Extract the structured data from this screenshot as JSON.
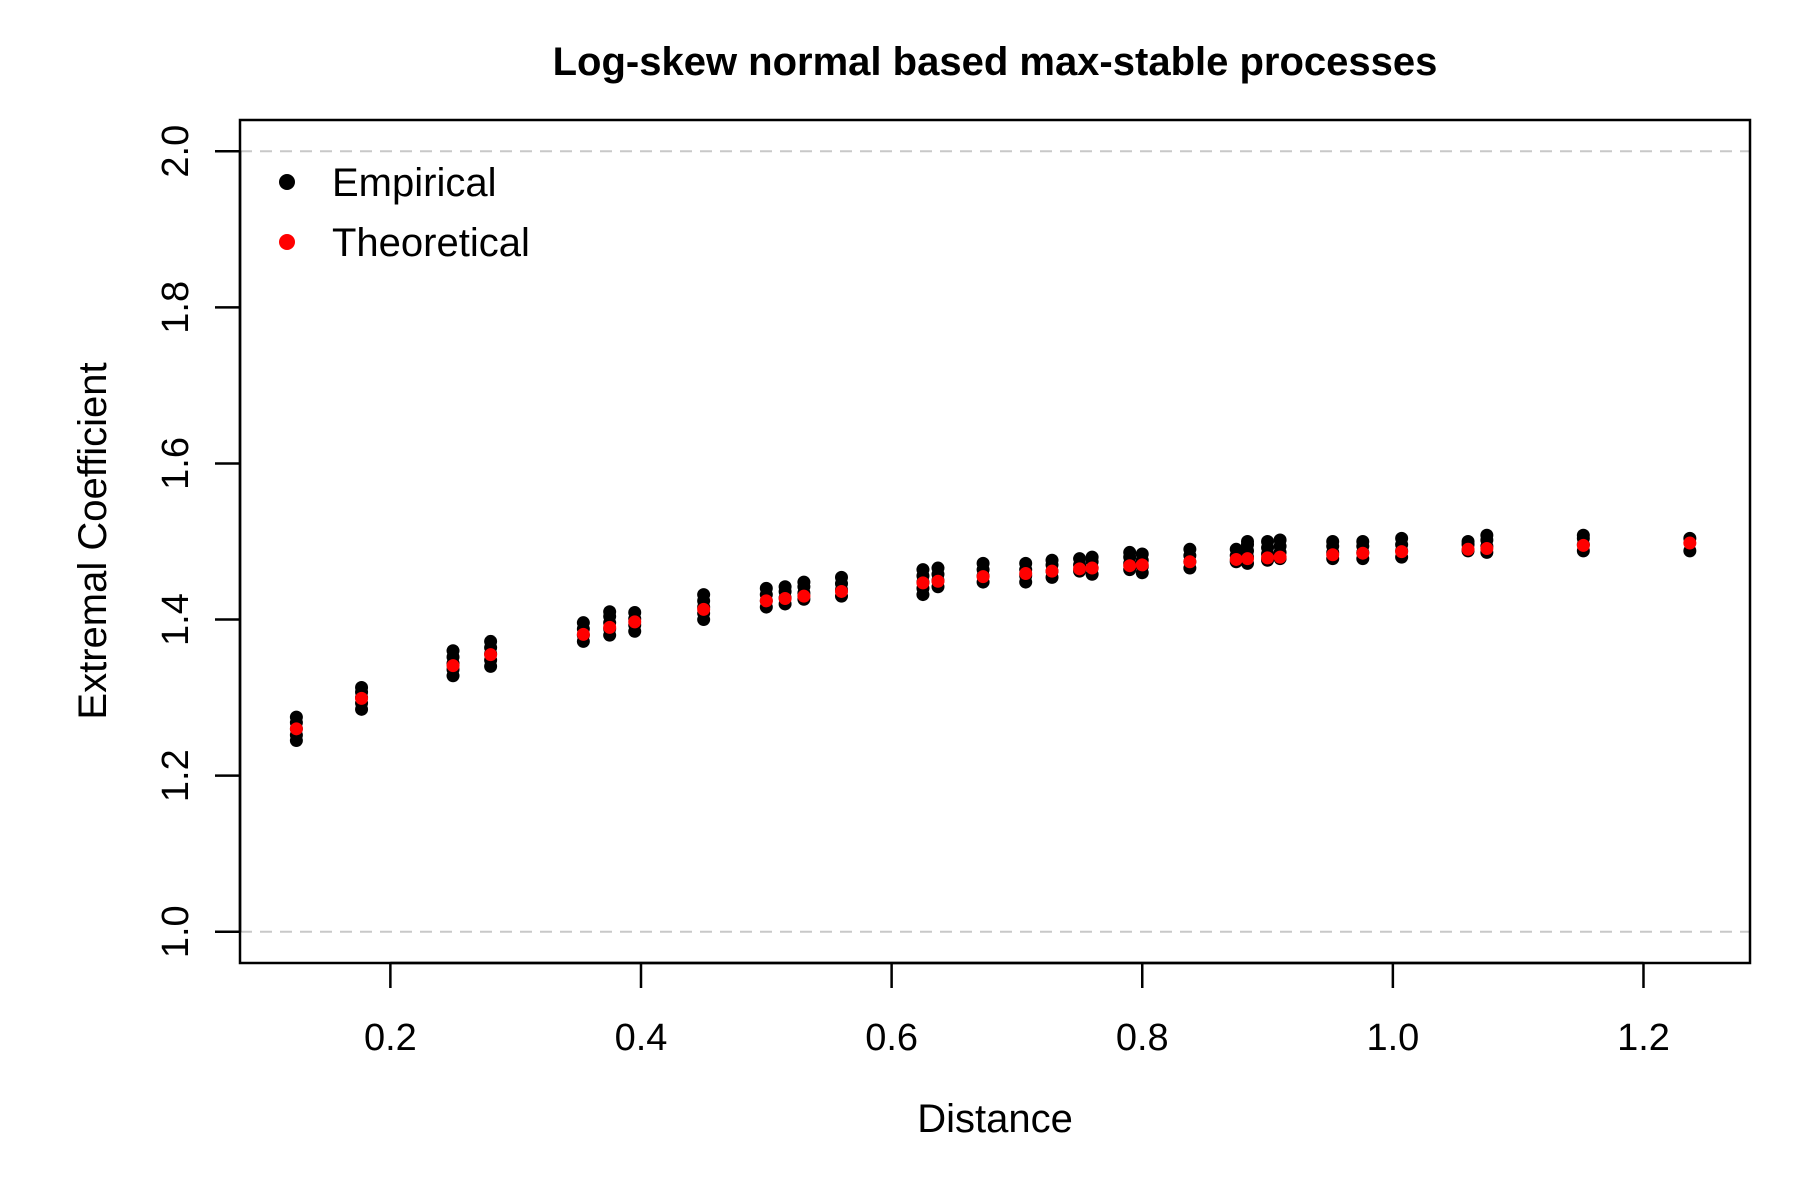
{
  "chart_data": {
    "type": "scatter",
    "title": "Log-skew normal based max-stable processes",
    "xlabel": "Distance",
    "ylabel": "Extremal Coefficient",
    "xlim": [
      0.08,
      1.285
    ],
    "ylim": [
      0.96,
      2.04
    ],
    "xticks": [
      {
        "value": 0.2,
        "label": "0.2"
      },
      {
        "value": 0.4,
        "label": "0.4"
      },
      {
        "value": 0.6,
        "label": "0.6"
      },
      {
        "value": 0.8,
        "label": "0.8"
      },
      {
        "value": 1.0,
        "label": "1.0"
      },
      {
        "value": 1.2,
        "label": "1.2"
      }
    ],
    "yticks": [
      {
        "value": 1.0,
        "label": "1.0"
      },
      {
        "value": 1.2,
        "label": "1.2"
      },
      {
        "value": 1.4,
        "label": "1.4"
      },
      {
        "value": 1.6,
        "label": "1.6"
      },
      {
        "value": 1.8,
        "label": "1.8"
      },
      {
        "value": 2.0,
        "label": "2.0"
      }
    ],
    "reference_lines": [
      1.0,
      2.0
    ],
    "reference_line_color": "#c8c8c8",
    "legend_position": "top-left",
    "series": [
      {
        "name": "Empirical",
        "color": "#000000",
        "points": [
          [
            0.125,
            1.245
          ],
          [
            0.125,
            1.252
          ],
          [
            0.125,
            1.26
          ],
          [
            0.125,
            1.268
          ],
          [
            0.125,
            1.275
          ],
          [
            0.177,
            1.285
          ],
          [
            0.177,
            1.293
          ],
          [
            0.177,
            1.3
          ],
          [
            0.177,
            1.307
          ],
          [
            0.177,
            1.313
          ],
          [
            0.25,
            1.328
          ],
          [
            0.25,
            1.336
          ],
          [
            0.25,
            1.344
          ],
          [
            0.25,
            1.352
          ],
          [
            0.25,
            1.36
          ],
          [
            0.28,
            1.34
          ],
          [
            0.28,
            1.348
          ],
          [
            0.28,
            1.356
          ],
          [
            0.28,
            1.364
          ],
          [
            0.28,
            1.372
          ],
          [
            0.354,
            1.372
          ],
          [
            0.354,
            1.38
          ],
          [
            0.354,
            1.388
          ],
          [
            0.354,
            1.396
          ],
          [
            0.375,
            1.38
          ],
          [
            0.375,
            1.388
          ],
          [
            0.375,
            1.396
          ],
          [
            0.375,
            1.404
          ],
          [
            0.375,
            1.41
          ],
          [
            0.395,
            1.385
          ],
          [
            0.395,
            1.393
          ],
          [
            0.395,
            1.401
          ],
          [
            0.395,
            1.409
          ],
          [
            0.45,
            1.4
          ],
          [
            0.45,
            1.408
          ],
          [
            0.45,
            1.416
          ],
          [
            0.45,
            1.424
          ],
          [
            0.45,
            1.432
          ],
          [
            0.5,
            1.416
          ],
          [
            0.5,
            1.424
          ],
          [
            0.5,
            1.432
          ],
          [
            0.5,
            1.44
          ],
          [
            0.515,
            1.42
          ],
          [
            0.515,
            1.428
          ],
          [
            0.515,
            1.436
          ],
          [
            0.515,
            1.442
          ],
          [
            0.53,
            1.426
          ],
          [
            0.53,
            1.434
          ],
          [
            0.53,
            1.442
          ],
          [
            0.53,
            1.448
          ],
          [
            0.56,
            1.43
          ],
          [
            0.56,
            1.438
          ],
          [
            0.56,
            1.446
          ],
          [
            0.56,
            1.454
          ],
          [
            0.625,
            1.432
          ],
          [
            0.625,
            1.44
          ],
          [
            0.625,
            1.448
          ],
          [
            0.625,
            1.456
          ],
          [
            0.625,
            1.464
          ],
          [
            0.637,
            1.442
          ],
          [
            0.637,
            1.45
          ],
          [
            0.637,
            1.458
          ],
          [
            0.637,
            1.466
          ],
          [
            0.673,
            1.448
          ],
          [
            0.673,
            1.456
          ],
          [
            0.673,
            1.464
          ],
          [
            0.673,
            1.472
          ],
          [
            0.707,
            1.448
          ],
          [
            0.707,
            1.456
          ],
          [
            0.707,
            1.464
          ],
          [
            0.707,
            1.472
          ],
          [
            0.728,
            1.454
          ],
          [
            0.728,
            1.462
          ],
          [
            0.728,
            1.47
          ],
          [
            0.728,
            1.476
          ],
          [
            0.75,
            1.462
          ],
          [
            0.75,
            1.47
          ],
          [
            0.75,
            1.478
          ],
          [
            0.76,
            1.458
          ],
          [
            0.76,
            1.466
          ],
          [
            0.76,
            1.474
          ],
          [
            0.76,
            1.48
          ],
          [
            0.79,
            1.464
          ],
          [
            0.79,
            1.472
          ],
          [
            0.79,
            1.48
          ],
          [
            0.79,
            1.486
          ],
          [
            0.8,
            1.46
          ],
          [
            0.8,
            1.468
          ],
          [
            0.8,
            1.476
          ],
          [
            0.8,
            1.484
          ],
          [
            0.838,
            1.466
          ],
          [
            0.838,
            1.474
          ],
          [
            0.838,
            1.482
          ],
          [
            0.838,
            1.49
          ],
          [
            0.875,
            1.474
          ],
          [
            0.875,
            1.482
          ],
          [
            0.875,
            1.49
          ],
          [
            0.884,
            1.472
          ],
          [
            0.884,
            1.48
          ],
          [
            0.884,
            1.488
          ],
          [
            0.884,
            1.496
          ],
          [
            0.884,
            1.5
          ],
          [
            0.9,
            1.476
          ],
          [
            0.9,
            1.484
          ],
          [
            0.9,
            1.492
          ],
          [
            0.9,
            1.5
          ],
          [
            0.91,
            1.478
          ],
          [
            0.91,
            1.486
          ],
          [
            0.91,
            1.494
          ],
          [
            0.91,
            1.502
          ],
          [
            0.952,
            1.478
          ],
          [
            0.952,
            1.486
          ],
          [
            0.952,
            1.494
          ],
          [
            0.952,
            1.5
          ],
          [
            0.976,
            1.478
          ],
          [
            0.976,
            1.486
          ],
          [
            0.976,
            1.494
          ],
          [
            0.976,
            1.5
          ],
          [
            1.007,
            1.48
          ],
          [
            1.007,
            1.488
          ],
          [
            1.007,
            1.496
          ],
          [
            1.007,
            1.504
          ],
          [
            1.06,
            1.488
          ],
          [
            1.06,
            1.496
          ],
          [
            1.06,
            1.5
          ],
          [
            1.075,
            1.486
          ],
          [
            1.075,
            1.494
          ],
          [
            1.075,
            1.502
          ],
          [
            1.075,
            1.508
          ],
          [
            1.152,
            1.488
          ],
          [
            1.152,
            1.496
          ],
          [
            1.152,
            1.504
          ],
          [
            1.152,
            1.508
          ],
          [
            1.237,
            1.488
          ],
          [
            1.237,
            1.504
          ]
        ]
      },
      {
        "name": "Theoretical",
        "color": "#ff0000",
        "points": [
          [
            0.125,
            1.26
          ],
          [
            0.177,
            1.299
          ],
          [
            0.25,
            1.341
          ],
          [
            0.28,
            1.355
          ],
          [
            0.354,
            1.381
          ],
          [
            0.375,
            1.39
          ],
          [
            0.395,
            1.397
          ],
          [
            0.45,
            1.413
          ],
          [
            0.5,
            1.424
          ],
          [
            0.515,
            1.427
          ],
          [
            0.53,
            1.43
          ],
          [
            0.56,
            1.436
          ],
          [
            0.625,
            1.447
          ],
          [
            0.637,
            1.449
          ],
          [
            0.673,
            1.455
          ],
          [
            0.707,
            1.459
          ],
          [
            0.728,
            1.462
          ],
          [
            0.75,
            1.465
          ],
          [
            0.76,
            1.466
          ],
          [
            0.79,
            1.469
          ],
          [
            0.8,
            1.47
          ],
          [
            0.838,
            1.474
          ],
          [
            0.875,
            1.477
          ],
          [
            0.884,
            1.478
          ],
          [
            0.9,
            1.479
          ],
          [
            0.91,
            1.48
          ],
          [
            0.952,
            1.483
          ],
          [
            0.976,
            1.485
          ],
          [
            1.007,
            1.487
          ],
          [
            1.06,
            1.49
          ],
          [
            1.075,
            1.491
          ],
          [
            1.152,
            1.495
          ],
          [
            1.237,
            1.498
          ]
        ]
      }
    ]
  }
}
